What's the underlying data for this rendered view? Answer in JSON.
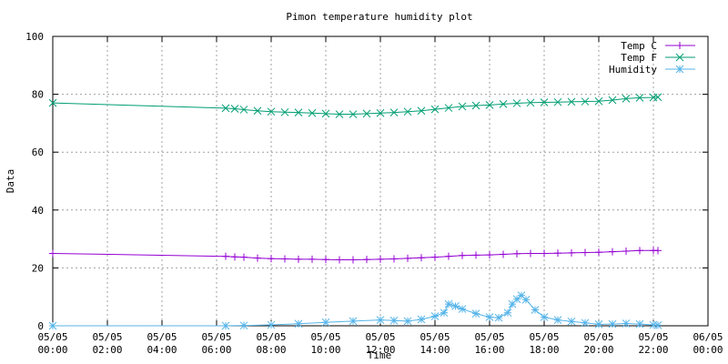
{
  "chart_data": {
    "type": "line",
    "title": "Pimon temperature   humidity plot",
    "xlabel": "Time",
    "ylabel": "Data",
    "ylim": [
      0,
      100
    ],
    "yticks": [
      "0",
      "20",
      "40",
      "60",
      "80",
      "100"
    ],
    "xlim": [
      "05/05 00:00",
      "06/05 00:00"
    ],
    "xticks": [
      {
        "date": "05/05",
        "time": "00:00"
      },
      {
        "date": "05/05",
        "time": "02:00"
      },
      {
        "date": "05/05",
        "time": "04:00"
      },
      {
        "date": "05/05",
        "time": "06:00"
      },
      {
        "date": "05/05",
        "time": "08:00"
      },
      {
        "date": "05/05",
        "time": "10:00"
      },
      {
        "date": "05/05",
        "time": "12:00"
      },
      {
        "date": "05/05",
        "time": "14:00"
      },
      {
        "date": "05/05",
        "time": "16:00"
      },
      {
        "date": "05/05",
        "time": "18:00"
      },
      {
        "date": "05/05",
        "time": "20:00"
      },
      {
        "date": "05/05",
        "time": "22:00"
      },
      {
        "date": "06/05",
        "time": "00:00"
      }
    ],
    "grid": true,
    "legend": "top-right",
    "series": [
      {
        "name": "Temp C",
        "color": "#9400d3",
        "marker": "plus",
        "points": [
          [
            "05/05 00:00",
            25.0
          ],
          [
            "05/05 06:20",
            24.0
          ],
          [
            "05/05 06:40",
            23.8
          ],
          [
            "05/05 07:00",
            23.7
          ],
          [
            "05/05 07:30",
            23.4
          ],
          [
            "05/05 08:00",
            23.2
          ],
          [
            "05/05 08:30",
            23.1
          ],
          [
            "05/05 09:00",
            23.0
          ],
          [
            "05/05 09:30",
            23.0
          ],
          [
            "05/05 10:00",
            22.9
          ],
          [
            "05/05 10:30",
            22.8
          ],
          [
            "05/05 11:00",
            22.8
          ],
          [
            "05/05 11:30",
            22.9
          ],
          [
            "05/05 12:00",
            23.0
          ],
          [
            "05/05 12:30",
            23.1
          ],
          [
            "05/05 13:00",
            23.3
          ],
          [
            "05/05 13:30",
            23.5
          ],
          [
            "05/05 14:00",
            23.7
          ],
          [
            "05/05 14:30",
            24.0
          ],
          [
            "05/05 15:00",
            24.3
          ],
          [
            "05/05 15:30",
            24.4
          ],
          [
            "05/05 16:00",
            24.5
          ],
          [
            "05/05 16:30",
            24.7
          ],
          [
            "05/05 17:00",
            24.9
          ],
          [
            "05/05 17:30",
            25.0
          ],
          [
            "05/05 18:00",
            25.0
          ],
          [
            "05/05 18:30",
            25.1
          ],
          [
            "05/05 19:00",
            25.2
          ],
          [
            "05/05 19:30",
            25.3
          ],
          [
            "05/05 20:00",
            25.4
          ],
          [
            "05/05 20:30",
            25.6
          ],
          [
            "05/05 21:00",
            25.8
          ],
          [
            "05/05 21:30",
            26.0
          ],
          [
            "05/05 22:00",
            26.0
          ],
          [
            "05/05 22:10",
            26.0
          ]
        ]
      },
      {
        "name": "Temp F",
        "color": "#009e73",
        "marker": "cross",
        "points": [
          [
            "05/05 00:00",
            77.0
          ],
          [
            "05/05 06:20",
            75.2
          ],
          [
            "05/05 06:40",
            75.0
          ],
          [
            "05/05 07:00",
            74.7
          ],
          [
            "05/05 07:30",
            74.3
          ],
          [
            "05/05 08:00",
            74.0
          ],
          [
            "05/05 08:30",
            73.8
          ],
          [
            "05/05 09:00",
            73.7
          ],
          [
            "05/05 09:30",
            73.5
          ],
          [
            "05/05 10:00",
            73.3
          ],
          [
            "05/05 10:30",
            73.1
          ],
          [
            "05/05 11:00",
            73.1
          ],
          [
            "05/05 11:30",
            73.3
          ],
          [
            "05/05 12:00",
            73.5
          ],
          [
            "05/05 12:30",
            73.7
          ],
          [
            "05/05 13:00",
            74.0
          ],
          [
            "05/05 13:30",
            74.3
          ],
          [
            "05/05 14:00",
            74.8
          ],
          [
            "05/05 14:30",
            75.3
          ],
          [
            "05/05 15:00",
            75.8
          ],
          [
            "05/05 15:30",
            76.1
          ],
          [
            "05/05 16:00",
            76.3
          ],
          [
            "05/05 16:30",
            76.6
          ],
          [
            "05/05 17:00",
            76.9
          ],
          [
            "05/05 17:30",
            77.1
          ],
          [
            "05/05 18:00",
            77.2
          ],
          [
            "05/05 18:30",
            77.3
          ],
          [
            "05/05 19:00",
            77.4
          ],
          [
            "05/05 19:30",
            77.5
          ],
          [
            "05/05 20:00",
            77.6
          ],
          [
            "05/05 20:30",
            78.0
          ],
          [
            "05/05 21:00",
            78.5
          ],
          [
            "05/05 21:30",
            78.8
          ],
          [
            "05/05 22:00",
            78.9
          ],
          [
            "05/05 22:10",
            79.0
          ]
        ]
      },
      {
        "name": "Humidity",
        "color": "#56b4e9",
        "marker": "star",
        "points": [
          [
            "05/05 00:00",
            0.0
          ],
          [
            "05/05 06:20",
            0.0
          ],
          [
            "05/05 07:00",
            0.1
          ],
          [
            "05/05 08:00",
            0.3
          ],
          [
            "05/05 09:00",
            0.7
          ],
          [
            "05/05 10:00",
            1.2
          ],
          [
            "05/05 11:00",
            1.6
          ],
          [
            "05/05 12:00",
            2.0
          ],
          [
            "05/05 12:30",
            1.8
          ],
          [
            "05/05 13:00",
            1.6
          ],
          [
            "05/05 13:30",
            2.2
          ],
          [
            "05/05 14:00",
            3.3
          ],
          [
            "05/05 14:20",
            4.5
          ],
          [
            "05/05 14:30",
            7.5
          ],
          [
            "05/05 14:45",
            6.8
          ],
          [
            "05/05 15:00",
            5.8
          ],
          [
            "05/05 15:30",
            4.2
          ],
          [
            "05/05 16:00",
            3.0
          ],
          [
            "05/05 16:20",
            2.8
          ],
          [
            "05/05 16:40",
            4.5
          ],
          [
            "05/05 16:50",
            7.5
          ],
          [
            "05/05 17:00",
            9.2
          ],
          [
            "05/05 17:10",
            10.5
          ],
          [
            "05/05 17:20",
            9.0
          ],
          [
            "05/05 17:40",
            5.5
          ],
          [
            "05/05 18:00",
            3.0
          ],
          [
            "05/05 18:30",
            2.0
          ],
          [
            "05/05 19:00",
            1.5
          ],
          [
            "05/05 19:30",
            1.0
          ],
          [
            "05/05 20:00",
            0.5
          ],
          [
            "05/05 20:30",
            0.6
          ],
          [
            "05/05 21:00",
            0.8
          ],
          [
            "05/05 21:30",
            0.6
          ],
          [
            "05/05 22:00",
            0.3
          ],
          [
            "05/05 22:10",
            0.2
          ]
        ]
      }
    ]
  }
}
